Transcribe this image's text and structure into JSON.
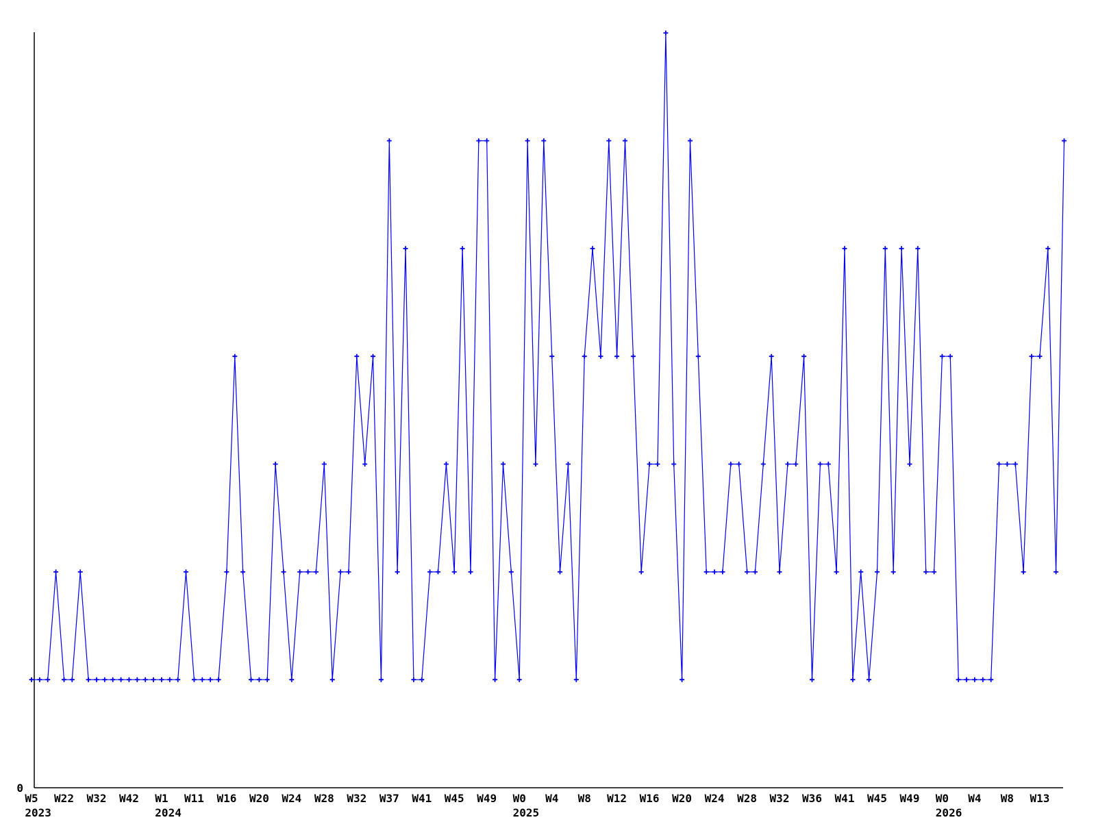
{
  "chart_data": {
    "type": "line",
    "title": "",
    "xlabel": "",
    "ylabel": "",
    "y_axis_tick_label": "0",
    "legend": "none",
    "grid": false,
    "ylim": [
      0,
      7.3
    ],
    "line_color": "#0000ee",
    "axis_color": "#000000",
    "marker": "plus",
    "tick_every": 4,
    "tick_labels": [
      {
        "week": "W5",
        "year": "2023"
      },
      {
        "week": "W22"
      },
      {
        "week": "W32"
      },
      {
        "week": "W42"
      },
      {
        "week": "W1",
        "year": "2024"
      },
      {
        "week": "W11"
      },
      {
        "week": "W16"
      },
      {
        "week": "W20"
      },
      {
        "week": "W24"
      },
      {
        "week": "W28"
      },
      {
        "week": "W32"
      },
      {
        "week": "W37"
      },
      {
        "week": "W41"
      },
      {
        "week": "W45"
      },
      {
        "week": "W49"
      },
      {
        "week": "W0",
        "year": "2025"
      },
      {
        "week": "W4"
      },
      {
        "week": "W8"
      },
      {
        "week": "W12"
      },
      {
        "week": "W16"
      },
      {
        "week": "W20"
      },
      {
        "week": "W24"
      },
      {
        "week": "W28"
      },
      {
        "week": "W32"
      },
      {
        "week": "W36"
      },
      {
        "week": "W41"
      },
      {
        "week": "W45"
      },
      {
        "week": "W49"
      },
      {
        "week": "W0",
        "year": "2026"
      },
      {
        "week": "W4"
      },
      {
        "week": "W8"
      },
      {
        "week": "W13"
      }
    ],
    "values": [
      1,
      1,
      1,
      2,
      1,
      1,
      2,
      1,
      1,
      1,
      1,
      1,
      1,
      1,
      1,
      1,
      1,
      1,
      1,
      2,
      1,
      1,
      1,
      1,
      2,
      4,
      2,
      1,
      1,
      1,
      3,
      2,
      1,
      2,
      2,
      2,
      3,
      1,
      2,
      2,
      4,
      3,
      4,
      1,
      6,
      2,
      5,
      1,
      1,
      2,
      2,
      3,
      2,
      5,
      2,
      6,
      6,
      1,
      3,
      2,
      1,
      6,
      3,
      6,
      4,
      2,
      3,
      1,
      4,
      5,
      4,
      6,
      4,
      6,
      4,
      2,
      3,
      3,
      7,
      3,
      1,
      6,
      4,
      2,
      2,
      2,
      3,
      3,
      2,
      2,
      3,
      4,
      2,
      3,
      3,
      4,
      1,
      3,
      3,
      2,
      5,
      1,
      2,
      1,
      2,
      5,
      2,
      5,
      3,
      5,
      2,
      2,
      4,
      4,
      1,
      1,
      1,
      1,
      1,
      3,
      3,
      3,
      2,
      4,
      4,
      5,
      2,
      6
    ]
  }
}
